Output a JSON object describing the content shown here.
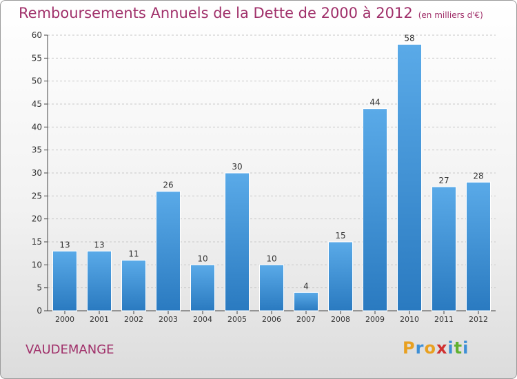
{
  "title": "Remboursements Annuels de la Dette de 2000 à 2012",
  "unit": "(en milliers d'€)",
  "town": "VAUDEMANGE",
  "logo_text": "Proxiti",
  "colors": {
    "bar": "#3d8fd6",
    "title": "#a0306a"
  },
  "chart_data": {
    "type": "bar",
    "categories": [
      "2000",
      "2001",
      "2002",
      "2003",
      "2004",
      "2005",
      "2006",
      "2007",
      "2008",
      "2009",
      "2010",
      "2011",
      "2012"
    ],
    "values": [
      13,
      13,
      11,
      26,
      10,
      30,
      10,
      4,
      15,
      44,
      58,
      27,
      28
    ],
    "ylim": [
      0,
      60
    ],
    "yticks": [
      0,
      5,
      10,
      15,
      20,
      25,
      30,
      35,
      40,
      45,
      50,
      55,
      60
    ],
    "grid": "horizontal dashed",
    "title": "Remboursements Annuels de la Dette de 2000 à 2012"
  }
}
